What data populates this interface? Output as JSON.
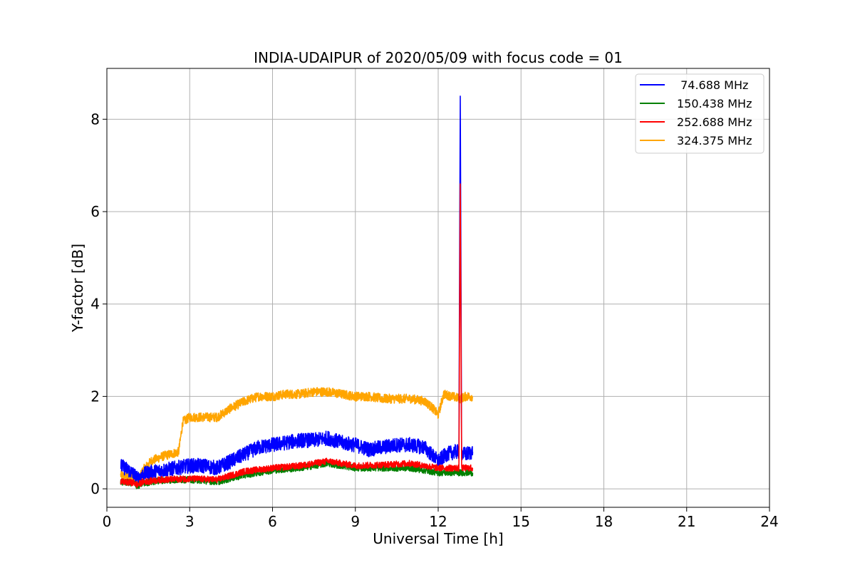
{
  "chart_data": {
    "type": "line",
    "title": "INDIA-UDAIPUR of 2020/05/09 with focus code = 01",
    "xlabel": "Universal Time [h]",
    "ylabel": "Y-factor [dB]",
    "xlim": [
      0,
      24
    ],
    "ylim": [
      -0.4,
      9.1
    ],
    "xticks": [
      0,
      3,
      6,
      9,
      12,
      15,
      18,
      21,
      24
    ],
    "yticks": [
      0,
      2,
      4,
      6,
      8
    ],
    "grid": true,
    "legend_position": "top-right",
    "series": [
      {
        "name": " 74.688 MHz",
        "color": "#0000ff",
        "noise": 0.16,
        "x": [
          0.5,
          0.8,
          1.0,
          1.1,
          1.3,
          1.5,
          2.0,
          2.5,
          3.0,
          3.5,
          4.0,
          4.5,
          5.0,
          5.5,
          6.0,
          6.5,
          7.0,
          7.5,
          8.0,
          8.5,
          9.0,
          9.5,
          10.0,
          10.5,
          11.0,
          11.5,
          12.0,
          12.3,
          12.6,
          12.75,
          12.8,
          12.85,
          12.9,
          13.0,
          13.25
        ],
        "y": [
          0.5,
          0.4,
          0.3,
          0.22,
          0.3,
          0.35,
          0.4,
          0.45,
          0.5,
          0.5,
          0.45,
          0.6,
          0.75,
          0.9,
          0.95,
          1.0,
          1.05,
          1.05,
          1.1,
          1.0,
          0.95,
          0.85,
          0.9,
          0.95,
          0.95,
          0.9,
          0.6,
          0.75,
          0.8,
          0.8,
          8.5,
          0.8,
          0.75,
          0.75,
          0.8
        ]
      },
      {
        "name": "150.438 MHz",
        "color": "#008000",
        "noise": 0.07,
        "x": [
          0.5,
          1.0,
          1.1,
          1.3,
          2.0,
          3.0,
          4.0,
          5.0,
          6.0,
          7.0,
          8.0,
          9.0,
          10.0,
          11.0,
          12.0,
          12.5,
          12.8,
          13.0,
          13.25
        ],
        "y": [
          0.15,
          0.12,
          0.05,
          0.12,
          0.18,
          0.2,
          0.15,
          0.3,
          0.4,
          0.45,
          0.55,
          0.45,
          0.45,
          0.45,
          0.35,
          0.35,
          0.35,
          0.35,
          0.35
        ]
      },
      {
        "name": "252.688 MHz",
        "color": "#ff0000",
        "noise": 0.07,
        "x": [
          0.5,
          1.0,
          1.1,
          1.3,
          2.0,
          3.0,
          4.0,
          5.0,
          6.0,
          7.0,
          8.0,
          9.0,
          10.0,
          11.0,
          12.0,
          12.5,
          12.75,
          12.8,
          12.85,
          13.0,
          13.25
        ],
        "y": [
          0.15,
          0.13,
          0.08,
          0.15,
          0.2,
          0.22,
          0.2,
          0.38,
          0.45,
          0.5,
          0.6,
          0.5,
          0.52,
          0.55,
          0.45,
          0.45,
          0.45,
          6.6,
          0.45,
          0.45,
          0.45
        ]
      },
      {
        "name": "324.375 MHz",
        "color": "#ffa500",
        "noise": 0.1,
        "x": [
          0.5,
          1.0,
          1.1,
          1.3,
          1.6,
          2.0,
          2.6,
          2.75,
          3.0,
          3.5,
          4.0,
          4.5,
          5.0,
          5.5,
          6.0,
          6.5,
          7.0,
          7.5,
          8.0,
          8.5,
          9.0,
          9.5,
          10.0,
          10.5,
          11.0,
          11.5,
          11.8,
          12.0,
          12.2,
          12.5,
          12.8,
          13.0,
          13.25
        ],
        "y": [
          0.3,
          0.22,
          0.12,
          0.4,
          0.6,
          0.7,
          0.8,
          1.45,
          1.55,
          1.55,
          1.55,
          1.75,
          1.9,
          2.0,
          2.0,
          2.05,
          2.05,
          2.1,
          2.1,
          2.05,
          2.0,
          2.0,
          1.95,
          1.95,
          1.95,
          1.9,
          1.75,
          1.6,
          2.05,
          2.0,
          1.95,
          2.0,
          2.0
        ]
      }
    ]
  }
}
